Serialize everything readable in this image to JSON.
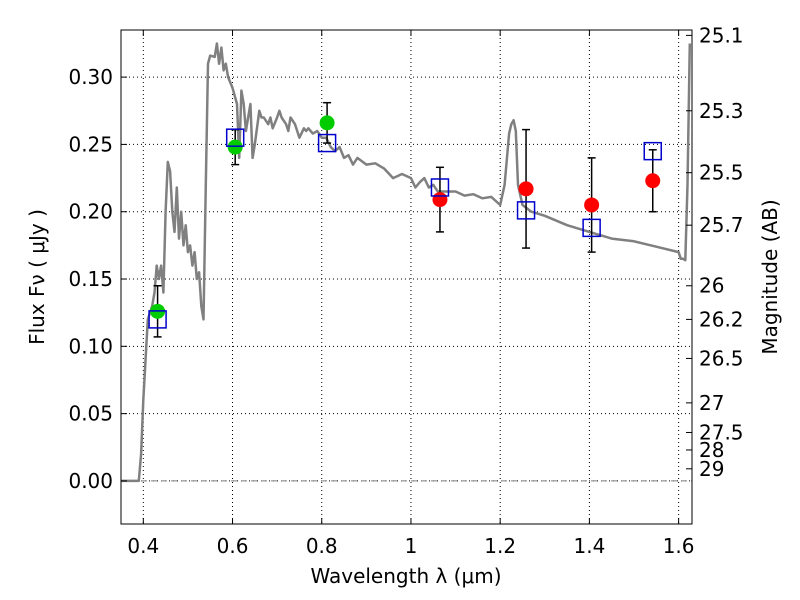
{
  "chart_data": {
    "type": "scatter",
    "xlabel": "Wavelength  λ (μm)",
    "ylabel": "Flux  Fν  ( μJy )",
    "y2label": "Magnitude (AB)",
    "xlim": [
      0.35,
      1.63
    ],
    "ylim": [
      -0.032,
      0.335
    ],
    "grid": true,
    "x_ticks": [
      0.4,
      0.6,
      0.8,
      1.0,
      1.2,
      1.4,
      1.6
    ],
    "x_tick_labels": [
      "0.4",
      "0.6",
      "0.8",
      "1",
      "1.2",
      "1.4",
      "1.6"
    ],
    "y_ticks": [
      0.0,
      0.05,
      0.1,
      0.15,
      0.2,
      0.25,
      0.3
    ],
    "y_tick_labels": [
      "0.00",
      "0.05",
      "0.10",
      "0.15",
      "0.20",
      "0.25",
      "0.30"
    ],
    "y2_ticks": [
      {
        "label": "25.1",
        "flux": 0.331
      },
      {
        "label": "25.3",
        "flux": 0.275
      },
      {
        "label": "25.5",
        "flux": 0.229
      },
      {
        "label": "25.7",
        "flux": 0.19
      },
      {
        "label": "26",
        "flux": 0.145
      },
      {
        "label": "26.2",
        "flux": 0.12
      },
      {
        "label": "26.5",
        "flux": 0.091
      },
      {
        "label": "27",
        "flux": 0.058
      },
      {
        "label": "27.5",
        "flux": 0.036
      },
      {
        "label": "28",
        "flux": 0.023
      },
      {
        "label": "29",
        "flux": 0.009
      }
    ],
    "model_spectrum": {
      "color": "#808080",
      "x": [
        0.35,
        0.39,
        0.395,
        0.4,
        0.41,
        0.42,
        0.425,
        0.43,
        0.435,
        0.44,
        0.445,
        0.45,
        0.455,
        0.46,
        0.465,
        0.47,
        0.475,
        0.48,
        0.485,
        0.49,
        0.495,
        0.5,
        0.505,
        0.51,
        0.515,
        0.52,
        0.525,
        0.53,
        0.535,
        0.54,
        0.545,
        0.55,
        0.56,
        0.565,
        0.57,
        0.575,
        0.58,
        0.585,
        0.59,
        0.6,
        0.61,
        0.615,
        0.62,
        0.625,
        0.63,
        0.64,
        0.645,
        0.65,
        0.66,
        0.665,
        0.67,
        0.68,
        0.685,
        0.69,
        0.7,
        0.705,
        0.71,
        0.72,
        0.725,
        0.73,
        0.74,
        0.75,
        0.76,
        0.765,
        0.77,
        0.78,
        0.79,
        0.8,
        0.81,
        0.82,
        0.83,
        0.84,
        0.85,
        0.86,
        0.87,
        0.88,
        0.9,
        0.92,
        0.94,
        0.96,
        0.98,
        1.0,
        1.01,
        1.02,
        1.03,
        1.04,
        1.05,
        1.06,
        1.08,
        1.1,
        1.12,
        1.14,
        1.16,
        1.18,
        1.2,
        1.21,
        1.22,
        1.225,
        1.23,
        1.235,
        1.24,
        1.25,
        1.27,
        1.3,
        1.35,
        1.4,
        1.45,
        1.5,
        1.55,
        1.6,
        1.605,
        1.61,
        1.615,
        1.62,
        1.625
      ],
      "y": [
        0.0,
        0.0,
        0.02,
        0.06,
        0.12,
        0.13,
        0.14,
        0.16,
        0.15,
        0.16,
        0.14,
        0.2,
        0.237,
        0.23,
        0.2,
        0.185,
        0.218,
        0.18,
        0.2,
        0.175,
        0.19,
        0.17,
        0.175,
        0.16,
        0.17,
        0.15,
        0.155,
        0.13,
        0.12,
        0.22,
        0.31,
        0.316,
        0.315,
        0.325,
        0.31,
        0.322,
        0.305,
        0.31,
        0.3,
        0.292,
        0.28,
        0.24,
        0.29,
        0.28,
        0.26,
        0.28,
        0.24,
        0.25,
        0.275,
        0.27,
        0.27,
        0.265,
        0.27,
        0.262,
        0.27,
        0.275,
        0.27,
        0.265,
        0.26,
        0.27,
        0.265,
        0.255,
        0.262,
        0.26,
        0.262,
        0.258,
        0.26,
        0.255,
        0.255,
        0.248,
        0.245,
        0.248,
        0.24,
        0.242,
        0.235,
        0.24,
        0.235,
        0.236,
        0.232,
        0.225,
        0.228,
        0.225,
        0.218,
        0.222,
        0.225,
        0.218,
        0.22,
        0.215,
        0.215,
        0.215,
        0.212,
        0.213,
        0.21,
        0.211,
        0.205,
        0.22,
        0.258,
        0.265,
        0.268,
        0.26,
        0.22,
        0.205,
        0.2,
        0.197,
        0.19,
        0.185,
        0.18,
        0.178,
        0.174,
        0.17,
        0.165,
        0.165,
        0.164,
        0.22,
        0.325
      ]
    },
    "series": [
      {
        "name": "",
        "marker": "circle",
        "color": "#00cc00",
        "x": [
          0.432,
          0.606,
          0.812
        ],
        "y": [
          0.126,
          0.248,
          0.266
        ],
        "yerr": [
          0.019,
          0.013,
          0.015
        ]
      },
      {
        "name": "",
        "marker": "circle",
        "color": "#ff0000",
        "x": [
          1.065,
          1.258,
          1.405,
          1.542
        ],
        "y": [
          0.209,
          0.217,
          0.205,
          0.223
        ],
        "yerr": [
          0.024,
          0.044,
          0.035,
          0.023
        ]
      },
      {
        "name": "",
        "marker": "open-square",
        "color": "#0000cc",
        "x": [
          0.432,
          0.606,
          0.812,
          1.065,
          1.258,
          1.405,
          1.542
        ],
        "y": [
          0.12,
          0.255,
          0.251,
          0.218,
          0.201,
          0.188,
          0.245
        ]
      }
    ]
  }
}
